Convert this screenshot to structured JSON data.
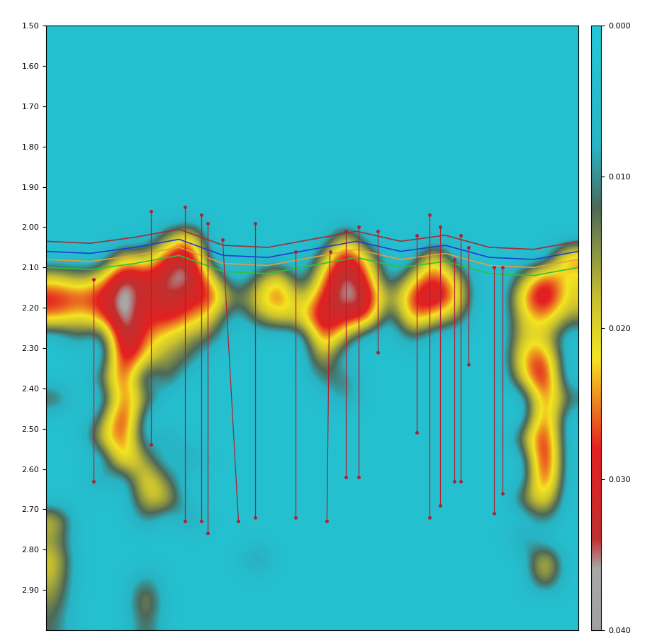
{
  "chart_data": {
    "type": "heatmap",
    "xlim": [
      0,
      24
    ],
    "ylim": [
      3.0,
      1.5
    ],
    "yticks": [
      {
        "value": 1.5,
        "label": "1.50"
      },
      {
        "value": 1.6,
        "label": "1.60"
      },
      {
        "value": 1.7,
        "label": "1.70"
      },
      {
        "value": 1.8,
        "label": "1.80"
      },
      {
        "value": 1.9,
        "label": "1.90"
      },
      {
        "value": 2.0,
        "label": "2.00"
      },
      {
        "value": 2.1,
        "label": "2.10"
      },
      {
        "value": 2.2,
        "label": "2.20"
      },
      {
        "value": 2.3,
        "label": "2.30"
      },
      {
        "value": 2.4,
        "label": "2.40"
      },
      {
        "value": 2.5,
        "label": "2.50"
      },
      {
        "value": 2.6,
        "label": "2.60"
      },
      {
        "value": 2.7,
        "label": "2.70"
      },
      {
        "value": 2.8,
        "label": "2.80"
      },
      {
        "value": 2.9,
        "label": "2.90"
      }
    ],
    "tick_labels": "y",
    "color_range": [
      0,
      0.04
    ],
    "color_ticks": [
      {
        "value": 0,
        "label": "0.000"
      },
      {
        "value": 0.01,
        "label": "0.010"
      },
      {
        "value": 0.02,
        "label": "0.020"
      },
      {
        "value": 0.03,
        "label": "0.030"
      },
      {
        "value": 0.04,
        "label": "0.040"
      }
    ],
    "cells": [
      [
        0.003,
        0.003,
        0.003,
        0.003,
        0.003,
        0.003,
        0.003,
        0.003,
        0.003,
        0.003,
        0.003,
        0.003,
        0.003,
        0.003,
        0.003,
        0.003,
        0.003,
        0.003,
        0.003,
        0.003,
        0.003,
        0.003,
        0.003,
        0.003
      ],
      [
        0.003,
        0.003,
        0.003,
        0.003,
        0.003,
        0.003,
        0.003,
        0.003,
        0.003,
        0.003,
        0.003,
        0.003,
        0.003,
        0.003,
        0.003,
        0.003,
        0.003,
        0.003,
        0.003,
        0.003,
        0.003,
        0.003,
        0.003,
        0.003
      ],
      [
        0.003,
        0.003,
        0.003,
        0.003,
        0.003,
        0.003,
        0.003,
        0.003,
        0.003,
        0.003,
        0.003,
        0.003,
        0.003,
        0.003,
        0.003,
        0.003,
        0.003,
        0.003,
        0.003,
        0.003,
        0.003,
        0.003,
        0.003,
        0.003
      ],
      [
        0.003,
        0.003,
        0.003,
        0.003,
        0.003,
        0.003,
        0.003,
        0.003,
        0.003,
        0.003,
        0.003,
        0.003,
        0.003,
        0.003,
        0.003,
        0.003,
        0.003,
        0.003,
        0.003,
        0.003,
        0.003,
        0.003,
        0.003,
        0.003
      ],
      [
        0.003,
        0.003,
        0.003,
        0.003,
        0.003,
        0.003,
        0.003,
        0.003,
        0.003,
        0.003,
        0.003,
        0.003,
        0.003,
        0.003,
        0.003,
        0.003,
        0.003,
        0.003,
        0.003,
        0.003,
        0.003,
        0.003,
        0.003,
        0.003
      ],
      [
        0.003,
        0.003,
        0.003,
        0.003,
        0.003,
        0.003,
        0.003,
        0.003,
        0.003,
        0.003,
        0.003,
        0.003,
        0.003,
        0.003,
        0.003,
        0.003,
        0.003,
        0.003,
        0.003,
        0.003,
        0.003,
        0.003,
        0.003,
        0.003
      ],
      [
        0.003,
        0.003,
        0.003,
        0.003,
        0.003,
        0.003,
        0.003,
        0.003,
        0.003,
        0.003,
        0.003,
        0.003,
        0.003,
        0.003,
        0.003,
        0.003,
        0.003,
        0.003,
        0.003,
        0.003,
        0.003,
        0.003,
        0.003,
        0.003
      ],
      [
        0.003,
        0.003,
        0.003,
        0.003,
        0.003,
        0.003,
        0.003,
        0.003,
        0.003,
        0.003,
        0.003,
        0.003,
        0.003,
        0.003,
        0.003,
        0.003,
        0.003,
        0.003,
        0.003,
        0.003,
        0.003,
        0.003,
        0.003,
        0.003
      ],
      [
        0.003,
        0.003,
        0.003,
        0.003,
        0.003,
        0.003,
        0.003,
        0.003,
        0.003,
        0.003,
        0.003,
        0.003,
        0.003,
        0.003,
        0.003,
        0.003,
        0.003,
        0.003,
        0.003,
        0.003,
        0.003,
        0.003,
        0.003,
        0.003
      ],
      [
        0.003,
        0.003,
        0.003,
        0.003,
        0.003,
        0.003,
        0.003,
        0.003,
        0.003,
        0.003,
        0.003,
        0.003,
        0.003,
        0.003,
        0.003,
        0.003,
        0.003,
        0.003,
        0.003,
        0.003,
        0.003,
        0.003,
        0.003,
        0.003
      ],
      [
        0.003,
        0.003,
        0.003,
        0.003,
        0.003,
        0.015,
        0.025,
        0.003,
        0.003,
        0.003,
        0.003,
        0.003,
        0.003,
        0.02,
        0.003,
        0.003,
        0.003,
        0.003,
        0.003,
        0.003,
        0.003,
        0.003,
        0.003,
        0.003
      ],
      [
        0.003,
        0.003,
        0.003,
        0.02,
        0.015,
        0.03,
        0.036,
        0.003,
        0.003,
        0.003,
        0.003,
        0.003,
        0.015,
        0.035,
        0.02,
        0.003,
        0.003,
        0.025,
        0.003,
        0.003,
        0.003,
        0.003,
        0.003,
        0.028
      ],
      [
        0.02,
        0.015,
        0.02,
        0.038,
        0.03,
        0.036,
        0.038,
        0.02,
        0.003,
        0.012,
        0.025,
        0.003,
        0.025,
        0.038,
        0.028,
        0.003,
        0.02,
        0.03,
        0.02,
        0.003,
        0.003,
        0.015,
        0.03,
        0.02
      ],
      [
        0.03,
        0.028,
        0.03,
        0.04,
        0.03,
        0.035,
        0.03,
        0.03,
        0.012,
        0.02,
        0.03,
        0.015,
        0.03,
        0.038,
        0.035,
        0.012,
        0.03,
        0.035,
        0.025,
        0.003,
        0.003,
        0.025,
        0.035,
        0.02
      ],
      [
        0.025,
        0.02,
        0.025,
        0.04,
        0.028,
        0.03,
        0.025,
        0.02,
        0.003,
        0.015,
        0.02,
        0.02,
        0.035,
        0.03,
        0.03,
        0.003,
        0.028,
        0.02,
        0.015,
        0.003,
        0.003,
        0.02,
        0.025,
        0.015
      ],
      [
        0.003,
        0.012,
        0.003,
        0.04,
        0.025,
        0.02,
        0.015,
        0.012,
        0.003,
        0.003,
        0.003,
        0.003,
        0.03,
        0.015,
        0.003,
        0.003,
        0.012,
        0.003,
        0.003,
        0.003,
        0.003,
        0.02,
        0.02,
        0.003
      ],
      [
        0.003,
        0.003,
        0.003,
        0.035,
        0.02,
        0.015,
        0.012,
        0.003,
        0.003,
        0.003,
        0.003,
        0.003,
        0.02,
        0.003,
        0.003,
        0.003,
        0.003,
        0.003,
        0.003,
        0.003,
        0.003,
        0.025,
        0.03,
        0.003
      ],
      [
        0.003,
        0.003,
        0.012,
        0.032,
        0.003,
        0.015,
        0.003,
        0.003,
        0.003,
        0.003,
        0.003,
        0.003,
        0.012,
        0.012,
        0.003,
        0.003,
        0.003,
        0.003,
        0.003,
        0.003,
        0.003,
        0.02,
        0.035,
        0.003
      ],
      [
        0.015,
        0.003,
        0.003,
        0.03,
        0.015,
        0.003,
        0.003,
        0.003,
        0.003,
        0.003,
        0.003,
        0.003,
        0.003,
        0.012,
        0.003,
        0.003,
        0.003,
        0.003,
        0.003,
        0.003,
        0.003,
        0.003,
        0.03,
        0.012
      ],
      [
        0.003,
        0.003,
        0.012,
        0.035,
        0.003,
        0.003,
        0.003,
        0.003,
        0.003,
        0.003,
        0.003,
        0.003,
        0.003,
        0.003,
        0.003,
        0.003,
        0.003,
        0.003,
        0.003,
        0.003,
        0.003,
        0.003,
        0.032,
        0.003
      ],
      [
        0.003,
        0.003,
        0.02,
        0.03,
        0.003,
        0.012,
        0.003,
        0.003,
        0.003,
        0.003,
        0.003,
        0.003,
        0.003,
        0.003,
        0.003,
        0.003,
        0.003,
        0.003,
        0.003,
        0.003,
        0.003,
        0.015,
        0.035,
        0.003
      ],
      [
        0.003,
        0.003,
        0.003,
        0.028,
        0.015,
        0.003,
        0.012,
        0.003,
        0.003,
        0.003,
        0.003,
        0.003,
        0.003,
        0.003,
        0.003,
        0.003,
        0.003,
        0.003,
        0.003,
        0.003,
        0.003,
        0.003,
        0.038,
        0.003
      ],
      [
        0.003,
        0.003,
        0.012,
        0.003,
        0.025,
        0.012,
        0.003,
        0.003,
        0.003,
        0.003,
        0.003,
        0.003,
        0.003,
        0.003,
        0.003,
        0.003,
        0.003,
        0.003,
        0.003,
        0.003,
        0.003,
        0.003,
        0.035,
        0.003
      ],
      [
        0.003,
        0.003,
        0.003,
        0.003,
        0.02,
        0.02,
        0.003,
        0.003,
        0.003,
        0.003,
        0.003,
        0.003,
        0.003,
        0.003,
        0.003,
        0.003,
        0.003,
        0.003,
        0.003,
        0.003,
        0.003,
        0.015,
        0.025,
        0.003
      ],
      [
        0.02,
        0.003,
        0.003,
        0.003,
        0.012,
        0.003,
        0.012,
        0.003,
        0.003,
        0.003,
        0.003,
        0.003,
        0.003,
        0.003,
        0.003,
        0.003,
        0.003,
        0.003,
        0.003,
        0.003,
        0.003,
        0.003,
        0.012,
        0.003
      ],
      [
        0.015,
        0.003,
        0.003,
        0.003,
        0.003,
        0.003,
        0.003,
        0.003,
        0.003,
        0.003,
        0.003,
        0.003,
        0.003,
        0.003,
        0.003,
        0.003,
        0.003,
        0.003,
        0.003,
        0.003,
        0.003,
        0.012,
        0.003,
        0.003
      ],
      [
        0.02,
        0.003,
        0.003,
        0.003,
        0.003,
        0.003,
        0.003,
        0.003,
        0.003,
        0.015,
        0.003,
        0.003,
        0.003,
        0.003,
        0.003,
        0.003,
        0.003,
        0.003,
        0.003,
        0.003,
        0.003,
        0.003,
        0.025,
        0.003
      ],
      [
        0.018,
        0.003,
        0.003,
        0.003,
        0.012,
        0.003,
        0.003,
        0.003,
        0.003,
        0.003,
        0.003,
        0.003,
        0.003,
        0.003,
        0.003,
        0.003,
        0.003,
        0.003,
        0.003,
        0.003,
        0.003,
        0.003,
        0.02,
        0.003
      ],
      [
        0.015,
        0.003,
        0.003,
        0.003,
        0.02,
        0.003,
        0.003,
        0.003,
        0.003,
        0.003,
        0.003,
        0.003,
        0.003,
        0.003,
        0.003,
        0.003,
        0.003,
        0.003,
        0.003,
        0.003,
        0.003,
        0.003,
        0.003,
        0.003
      ],
      [
        0.012,
        0.003,
        0.003,
        0.003,
        0.015,
        0.003,
        0.003,
        0.003,
        0.003,
        0.003,
        0.003,
        0.003,
        0.003,
        0.003,
        0.003,
        0.003,
        0.003,
        0.003,
        0.003,
        0.003,
        0.003,
        0.003,
        0.003,
        0.003
      ]
    ],
    "horizon_x": [
      0,
      2,
      4,
      6,
      8,
      10,
      12,
      14,
      16,
      18,
      20,
      22,
      24
    ],
    "horizons": [
      {
        "color": "#a0303a",
        "values": [
          2.035,
          2.04,
          2.025,
          2.005,
          2.045,
          2.05,
          2.03,
          2.01,
          2.035,
          2.02,
          2.05,
          2.055,
          2.035
        ]
      },
      {
        "color": "#1f3fd0",
        "values": [
          2.06,
          2.065,
          2.05,
          2.03,
          2.07,
          2.075,
          2.055,
          2.035,
          2.06,
          2.045,
          2.075,
          2.08,
          2.06
        ]
      },
      {
        "color": "#e0a040",
        "values": [
          2.08,
          2.085,
          2.07,
          2.05,
          2.09,
          2.095,
          2.075,
          2.055,
          2.08,
          2.065,
          2.095,
          2.1,
          2.08
        ]
      },
      {
        "color": "#30c040",
        "values": [
          2.1,
          2.105,
          2.09,
          2.07,
          2.11,
          2.115,
          2.095,
          2.075,
          2.1,
          2.085,
          2.115,
          2.12,
          2.1
        ]
      }
    ],
    "wells": [
      {
        "x": [
          2.14,
          2.14
        ],
        "y": [
          2.13,
          2.63
        ]
      },
      {
        "x": [
          4.75,
          4.75
        ],
        "y": [
          1.96,
          2.54
        ]
      },
      {
        "x": [
          6.26,
          6.26
        ],
        "y": [
          1.95,
          2.73
        ]
      },
      {
        "x": [
          7.0,
          7.0
        ],
        "y": [
          1.97,
          2.73
        ]
      },
      {
        "x": [
          7.29,
          7.29
        ],
        "y": [
          1.99,
          2.76
        ]
      },
      {
        "x": [
          7.97,
          8.68
        ],
        "y": [
          2.03,
          2.73
        ]
      },
      {
        "x": [
          9.42,
          9.42
        ],
        "y": [
          1.99,
          2.72
        ]
      },
      {
        "x": [
          11.25,
          11.25
        ],
        "y": [
          2.06,
          2.72
        ]
      },
      {
        "x": [
          12.81,
          12.67
        ],
        "y": [
          2.06,
          2.73
        ]
      },
      {
        "x": [
          13.52,
          13.52
        ],
        "y": [
          2.01,
          2.62
        ]
      },
      {
        "x": [
          14.09,
          14.09
        ],
        "y": [
          2.0,
          2.62
        ]
      },
      {
        "x": [
          14.95,
          14.95
        ],
        "y": [
          2.01,
          2.31
        ]
      },
      {
        "x": [
          16.71,
          16.71
        ],
        "y": [
          2.02,
          2.51
        ]
      },
      {
        "x": [
          17.28,
          17.28
        ],
        "y": [
          1.97,
          2.72
        ]
      },
      {
        "x": [
          17.79,
          17.79
        ],
        "y": [
          2.0,
          2.69
        ]
      },
      {
        "x": [
          18.42,
          18.42
        ],
        "y": [
          2.08,
          2.63
        ]
      },
      {
        "x": [
          18.7,
          18.7
        ],
        "y": [
          2.02,
          2.63
        ]
      },
      {
        "x": [
          19.05,
          19.05
        ],
        "y": [
          2.05,
          2.34
        ]
      },
      {
        "x": [
          20.21,
          20.21
        ],
        "y": [
          2.1,
          2.71
        ]
      },
      {
        "x": [
          20.58,
          20.58
        ],
        "y": [
          2.1,
          2.66
        ]
      }
    ],
    "well_color": "#b02030",
    "marker": "o"
  }
}
